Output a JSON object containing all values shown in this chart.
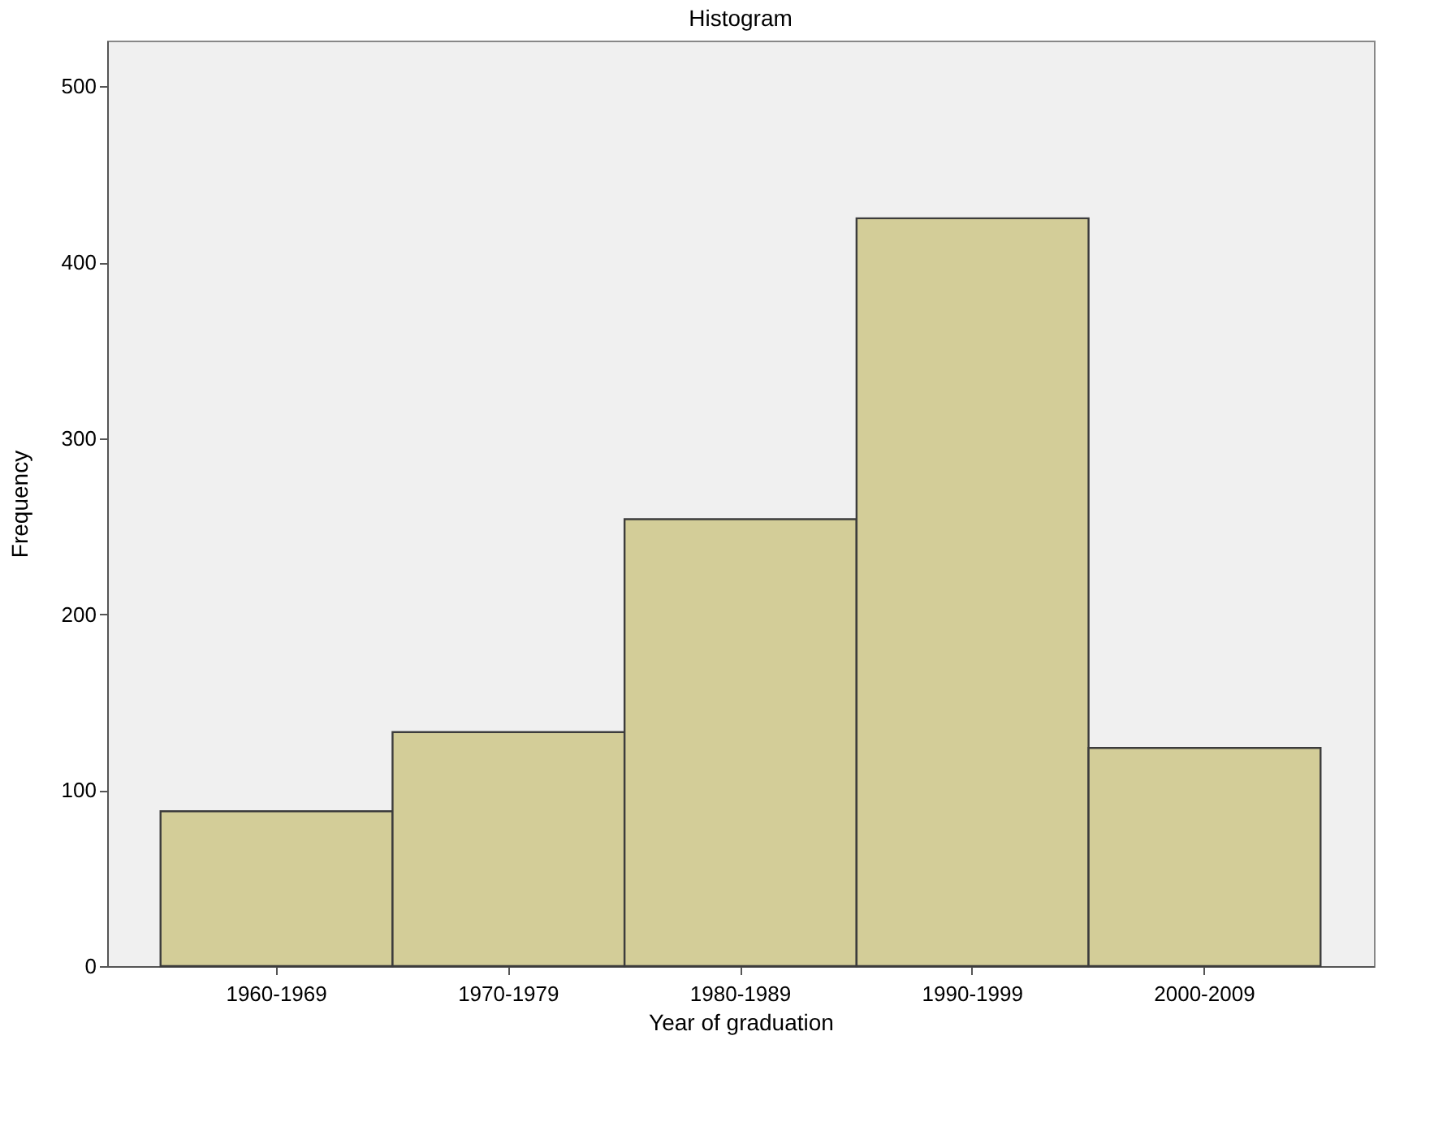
{
  "chart_data": {
    "type": "bar",
    "title": "Histogram",
    "xlabel": "Year of graduation",
    "ylabel": "Frequency",
    "categories": [
      "1960-1969",
      "1970-1979",
      "1980-1989",
      "1990-1999",
      "2000-2009"
    ],
    "values": [
      88,
      133,
      254,
      425,
      124
    ],
    "color": "#d3cd98",
    "ylim": [
      0,
      526
    ],
    "yticks": [
      0,
      100,
      200,
      300,
      400,
      500
    ],
    "grid": false
  }
}
